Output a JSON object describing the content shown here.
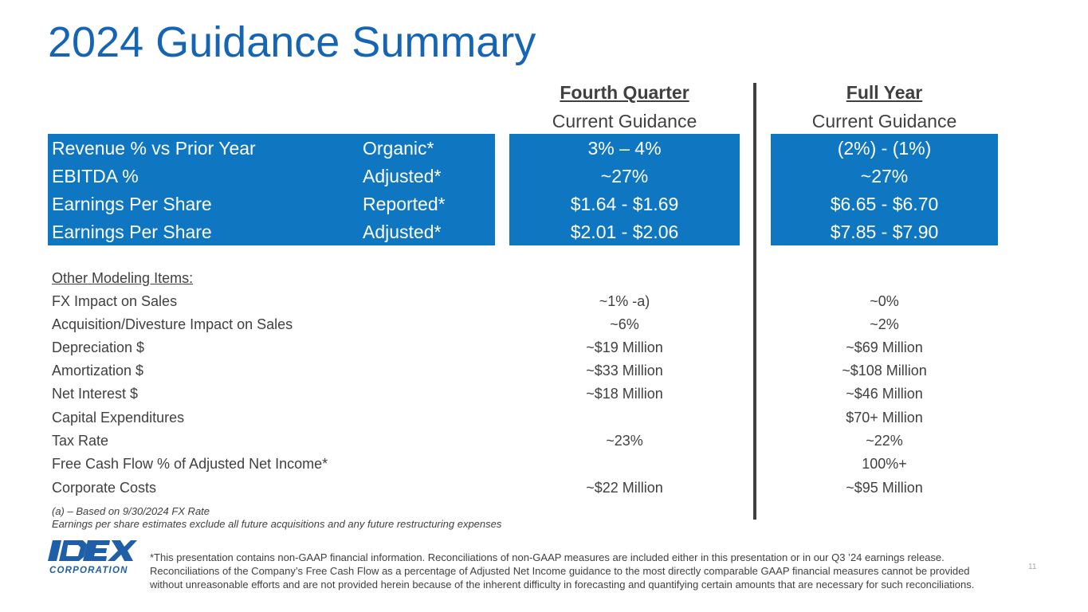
{
  "title": "2024 Guidance Summary",
  "columns": {
    "q4": {
      "period": "Fourth Quarter",
      "sub": "Current Guidance"
    },
    "fy": {
      "period": "Full Year",
      "sub": "Current Guidance"
    }
  },
  "main_rows": [
    {
      "label": "Revenue % vs Prior Year",
      "basis": "Organic*",
      "q4": "3% – 4%",
      "fy": "(2%) - (1%)"
    },
    {
      "label": "EBITDA %",
      "basis": "Adjusted*",
      "q4": "~27%",
      "fy": "~27%"
    },
    {
      "label": "Earnings Per Share",
      "basis": "Reported*",
      "q4": "$1.64 - $1.69",
      "fy": "$6.65 - $6.70"
    },
    {
      "label": "Earnings Per Share",
      "basis": "Adjusted*",
      "q4": "$2.01 - $2.06",
      "fy": "$7.85 - $7.90"
    }
  ],
  "other_items_title": "Other Modeling Items:",
  "other_items": [
    {
      "label": "FX Impact on Sales",
      "q4": "~1% -a)",
      "fy": "~0%"
    },
    {
      "label": "Acquisition/Divesture Impact on Sales",
      "q4": "~6%",
      "fy": "~2%"
    },
    {
      "label": "Depreciation $",
      "q4": "~$19 Million",
      "fy": "~$69 Million"
    },
    {
      "label": "Amortization $",
      "q4": "~$33 Million",
      "fy": "~$108 Million"
    },
    {
      "label": "Net Interest $",
      "q4": "~$18 Million",
      "fy": "~$46 Million"
    },
    {
      "label": "Capital Expenditures",
      "q4": "",
      "fy": "$70+ Million"
    },
    {
      "label": "Tax Rate",
      "q4": "~23%",
      "fy": "~22%"
    },
    {
      "label": "Free Cash Flow % of Adjusted Net Income*",
      "q4": "",
      "fy": "100%+"
    },
    {
      "label": "Corporate Costs",
      "q4": "~$22 Million",
      "fy": "~$95 Million"
    }
  ],
  "footnotes": {
    "fx": "(a) – Based on 9/30/2024 FX Rate",
    "eps": "Earnings per share estimates exclude all future acquisitions and any future restructuring expenses"
  },
  "disclaimer": "*This presentation contains non-GAAP financial information. Reconciliations of non-GAAP measures are included either in this presentation or in our Q3 ’24 earnings release. Reconciliations of the Company’s Free Cash Flow as a percentage of Adjusted Net Income guidance to the most directly comparable GAAP financial measures cannot be provided without unreasonable efforts and are not provided herein because of the inherent difficulty in forecasting and quantifying certain amounts that are necessary for such reconciliations.",
  "logo": {
    "wordmark": "IDEX",
    "sub": "CORPORATION"
  },
  "page_number": "11",
  "colors": {
    "title": "#1565b4",
    "band": "#0f77c2",
    "text": "#404040",
    "logo": "#1f5fa8"
  }
}
